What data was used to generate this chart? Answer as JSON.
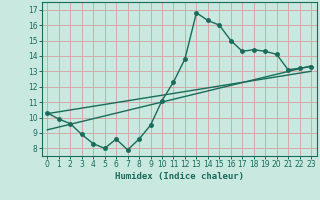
{
  "title": "",
  "xlabel": "Humidex (Indice chaleur)",
  "bg_color": "#c8e8e0",
  "grid_color": "#d4a8a8",
  "line_color": "#1a6b5a",
  "spine_color": "#1a6b5a",
  "xlim": [
    -0.5,
    23.5
  ],
  "ylim": [
    7.5,
    17.5
  ],
  "xticks": [
    0,
    1,
    2,
    3,
    4,
    5,
    6,
    7,
    8,
    9,
    10,
    11,
    12,
    13,
    14,
    15,
    16,
    17,
    18,
    19,
    20,
    21,
    22,
    23
  ],
  "yticks": [
    8,
    9,
    10,
    11,
    12,
    13,
    14,
    15,
    16,
    17
  ],
  "curve_x": [
    0,
    1,
    2,
    3,
    4,
    5,
    6,
    7,
    8,
    9,
    10,
    11,
    12,
    13,
    14,
    15,
    16,
    17,
    18,
    19,
    20,
    21,
    22,
    23
  ],
  "curve_y": [
    10.3,
    9.9,
    9.6,
    8.9,
    8.3,
    8.0,
    8.6,
    7.9,
    8.6,
    9.5,
    11.1,
    12.3,
    13.8,
    16.8,
    16.3,
    16.0,
    15.0,
    14.3,
    14.4,
    14.3,
    14.1,
    13.1,
    13.2,
    13.3
  ],
  "line1_x": [
    0,
    23
  ],
  "line1_y": [
    9.2,
    13.35
  ],
  "line2_x": [
    0,
    23
  ],
  "line2_y": [
    10.25,
    13.0
  ],
  "marker_size": 2.5,
  "line_width": 1.0,
  "xlabel_fontsize": 6.5,
  "tick_fontsize": 5.5
}
